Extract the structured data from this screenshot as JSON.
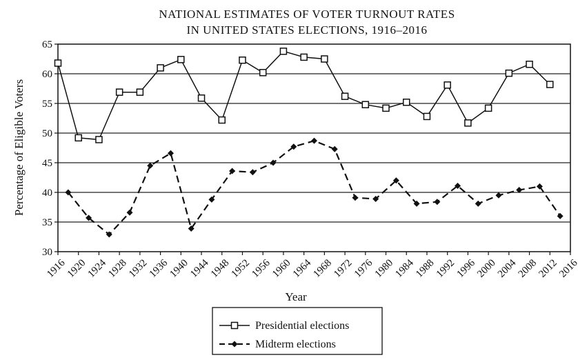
{
  "chart_data": {
    "type": "line",
    "title_line1": "NATIONAL ESTIMATES OF VOTER TURNOUT RATES",
    "title_line2": "IN UNITED STATES ELECTIONS, 1916–2016",
    "xlabel": "Year",
    "ylabel": "Percentage of Eligible Voters",
    "xlim": [
      1916,
      2016
    ],
    "ylim": [
      30,
      65
    ],
    "x_ticks": [
      1916,
      1920,
      1924,
      1928,
      1932,
      1936,
      1940,
      1944,
      1948,
      1952,
      1956,
      1960,
      1964,
      1968,
      1972,
      1976,
      1980,
      1984,
      1988,
      1992,
      1996,
      2000,
      2004,
      2008,
      2012,
      2016
    ],
    "y_ticks": [
      30,
      35,
      40,
      45,
      50,
      55,
      60,
      65
    ],
    "grid": "horizontal",
    "legend_position": "bottom",
    "series": [
      {
        "name": "Presidential elections",
        "marker": "open-square",
        "line": "solid",
        "x": [
          1916,
          1920,
          1924,
          1928,
          1932,
          1936,
          1940,
          1944,
          1948,
          1952,
          1956,
          1960,
          1964,
          1968,
          1972,
          1976,
          1980,
          1984,
          1988,
          1992,
          1996,
          2000,
          2004,
          2008,
          2012
        ],
        "values": [
          61.8,
          49.2,
          48.9,
          56.9,
          56.9,
          61.0,
          62.4,
          55.9,
          52.2,
          62.3,
          60.2,
          63.8,
          62.8,
          62.5,
          56.2,
          54.8,
          54.2,
          55.2,
          52.8,
          58.1,
          51.7,
          54.2,
          60.1,
          61.6,
          58.2
        ]
      },
      {
        "name": "Midterm elections",
        "marker": "filled-diamond",
        "line": "dashed",
        "x": [
          1918,
          1922,
          1926,
          1930,
          1934,
          1938,
          1942,
          1946,
          1950,
          1954,
          1958,
          1962,
          1966,
          1970,
          1974,
          1978,
          1982,
          1986,
          1990,
          1994,
          1998,
          2002,
          2006,
          2010,
          2014
        ],
        "values": [
          40.0,
          35.7,
          32.9,
          36.6,
          44.5,
          46.6,
          33.9,
          38.8,
          43.6,
          43.4,
          45.0,
          47.7,
          48.7,
          47.3,
          39.1,
          38.9,
          42.0,
          38.1,
          38.4,
          41.1,
          38.1,
          39.5,
          40.4,
          41.0,
          36.0
        ]
      }
    ]
  }
}
